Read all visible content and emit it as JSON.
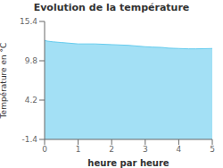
{
  "chart_data": {
    "type": "area",
    "title": "Evolution de la température",
    "xlabel": "heure par heure",
    "ylabel": "Température en °C",
    "x": [
      0,
      0.08,
      0.25,
      0.5,
      1.0,
      1.5,
      2.0,
      2.5,
      3.0,
      3.2,
      3.5,
      3.7,
      4.0,
      4.3,
      4.5,
      5.0
    ],
    "values": [
      12.7,
      12.6,
      12.5,
      12.4,
      12.2,
      12.2,
      12.1,
      12.0,
      11.8,
      11.75,
      11.7,
      11.6,
      11.55,
      11.5,
      11.5,
      11.55
    ],
    "color": "#66ccee",
    "xlim": [
      0,
      5
    ],
    "ylim": [
      -1.4,
      15.4
    ],
    "xticks": [
      0,
      1,
      2,
      3,
      4,
      5
    ],
    "yticks": [
      -1.4,
      4.2,
      9.8,
      15.4
    ],
    "grid": false
  }
}
